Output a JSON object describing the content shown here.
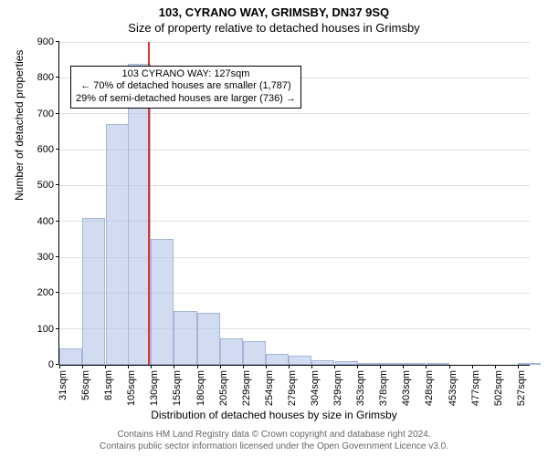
{
  "header": {
    "address": "103, CYRANO WAY, GRIMSBY, DN37 9SQ",
    "subtitle": "Size of property relative to detached houses in Grimsby"
  },
  "axes": {
    "ylabel": "Number of detached properties",
    "xlabel": "Distribution of detached houses by size in Grimsby"
  },
  "chart": {
    "type": "histogram",
    "background_color": "#ffffff",
    "grid_color": "#e0e0e0",
    "bar_fill": "rgba(180,197,231,0.6)",
    "bar_border": "#a5b4d9",
    "marker_color": "#e03030",
    "ylim": [
      0,
      900
    ],
    "ytick_step": 100,
    "yticks": [
      0,
      100,
      200,
      300,
      400,
      500,
      600,
      700,
      800,
      900
    ],
    "xlim": [
      31,
      540
    ],
    "xtick_start": 31,
    "xtick_step": 24.8,
    "xtick_count": 21,
    "xtick_unit": "sqm",
    "bins": [
      {
        "x": 31,
        "count": 45
      },
      {
        "x": 56,
        "count": 410
      },
      {
        "x": 81,
        "count": 670
      },
      {
        "x": 105,
        "count": 840
      },
      {
        "x": 130,
        "count": 350
      },
      {
        "x": 155,
        "count": 150
      },
      {
        "x": 180,
        "count": 145
      },
      {
        "x": 205,
        "count": 75
      },
      {
        "x": 230,
        "count": 65
      },
      {
        "x": 254,
        "count": 30
      },
      {
        "x": 279,
        "count": 25
      },
      {
        "x": 304,
        "count": 12
      },
      {
        "x": 329,
        "count": 10
      },
      {
        "x": 353,
        "count": 2
      },
      {
        "x": 378,
        "count": 6
      },
      {
        "x": 403,
        "count": 2
      },
      {
        "x": 428,
        "count": 6
      },
      {
        "x": 453,
        "count": 0
      },
      {
        "x": 477,
        "count": 0
      },
      {
        "x": 502,
        "count": 0
      },
      {
        "x": 527,
        "count": 2
      }
    ],
    "marker_x": 127
  },
  "annotation": {
    "line1": "103 CYRANO WAY: 127sqm",
    "line2": "← 70% of detached houses are smaller (1,787)",
    "line3": "29% of semi-detached houses are larger (736) →",
    "at_y": 830
  },
  "footer": {
    "line1": "Contains HM Land Registry data © Crown copyright and database right 2024.",
    "line2": "Contains public sector information licensed under the Open Government Licence v3.0."
  }
}
